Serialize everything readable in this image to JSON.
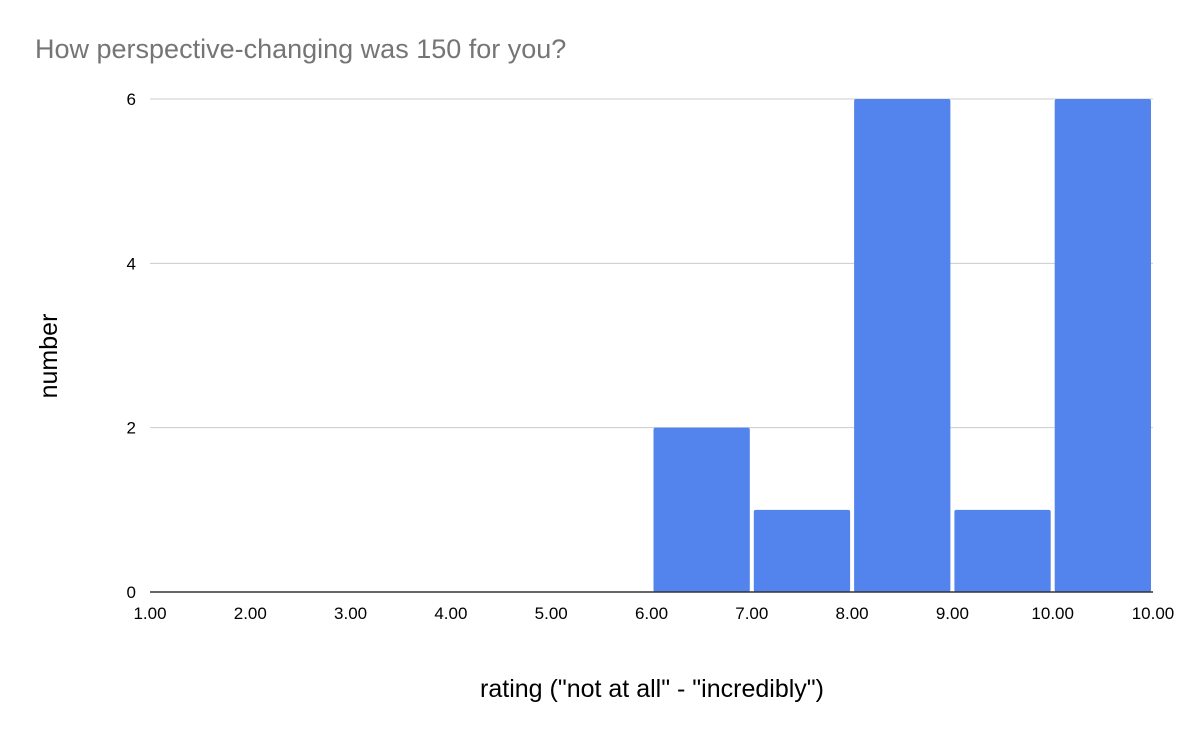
{
  "chart_data": {
    "type": "bar",
    "title": "How perspective-changing was 150 for you?",
    "xlabel": "rating (\"not at all\" - \"incredibly\")",
    "ylabel": "number",
    "x_tick_labels": [
      "1.00",
      "2.00",
      "3.00",
      "4.00",
      "5.00",
      "6.00",
      "7.00",
      "8.00",
      "9.00",
      "10.00",
      "10.00"
    ],
    "y_ticks": [
      0,
      2,
      4,
      6
    ],
    "ylim": [
      0,
      6
    ],
    "bins": [
      {
        "bin": 6,
        "value": 2
      },
      {
        "bin": 7,
        "value": 1
      },
      {
        "bin": 8,
        "value": 6
      },
      {
        "bin": 9,
        "value": 1
      },
      {
        "bin": 10,
        "value": 6
      }
    ],
    "grid": true,
    "legend": "none",
    "bar_color": "#5384ed"
  }
}
